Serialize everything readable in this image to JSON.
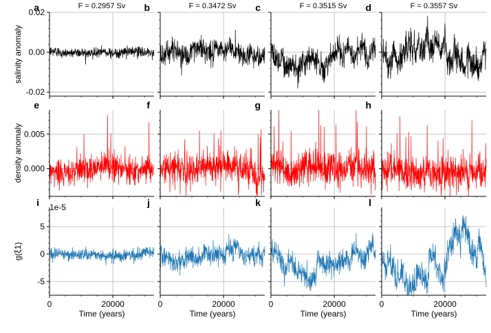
{
  "chart_data": {
    "type": "line",
    "layout": "3x4 grid of line panels; rows share y-axis, columns share x-axis",
    "x_range": [
      0,
      33000
    ],
    "x_label": "Time (years)",
    "x_ticks": [
      0,
      20000
    ],
    "x_tick_labels": [
      "0",
      "20000"
    ],
    "column_titles": [
      "F = 0.2957 Sv",
      "F = 0.3472 Sv",
      "F = 0.3515 Sv",
      "F = 0.3557 Sv"
    ],
    "rows": [
      {
        "name": "salinity",
        "ylabel": "salinity anomaly",
        "color": "#000000",
        "ylim": [
          -0.022,
          0.02
        ],
        "yticks": [
          -0.02,
          0.0,
          0.02
        ],
        "ytick_labels": [
          "-0.02",
          "0.00",
          "0.02"
        ],
        "offset_label": "",
        "letters": [
          "a",
          "b",
          "c",
          "d"
        ]
      },
      {
        "name": "density",
        "ylabel": "density anomaly",
        "color": "#ff0000",
        "ylim": [
          -0.004,
          0.0085
        ],
        "yticks": [
          0.0,
          0.005
        ],
        "ytick_labels": [
          "0.000",
          "0.005"
        ],
        "offset_label": "",
        "letters": [
          "e",
          "f",
          "g",
          "h"
        ]
      },
      {
        "name": "g",
        "ylabel": "g(ξ1)",
        "color": "#1f77b4",
        "ylim": [
          -7.5,
          8.5
        ],
        "yticks": [
          -5,
          0,
          5
        ],
        "ytick_labels": [
          "-5",
          "0",
          "5"
        ],
        "offset_label": "1e-5",
        "letters": [
          "i",
          "j",
          "k",
          "l"
        ]
      }
    ],
    "series_description": "Each panel is a noisy time series (~33000 years) plotted as a thin line; amplitude of fluctuations grows with F.",
    "approx_ranges": {
      "salinity": [
        [
          -0.004,
          0.004
        ],
        [
          -0.01,
          0.012
        ],
        [
          -0.015,
          0.012
        ],
        [
          -0.021,
          0.02
        ]
      ],
      "density": [
        [
          -0.003,
          0.0085
        ],
        [
          -0.003,
          0.0075
        ],
        [
          -0.004,
          0.0085
        ],
        [
          -0.004,
          0.009
        ]
      ],
      "g": [
        [
          -1.5,
          1.5
        ],
        [
          -3,
          3.8
        ],
        [
          -4.5,
          4.5
        ],
        [
          -6.5,
          7.5
        ]
      ]
    }
  }
}
